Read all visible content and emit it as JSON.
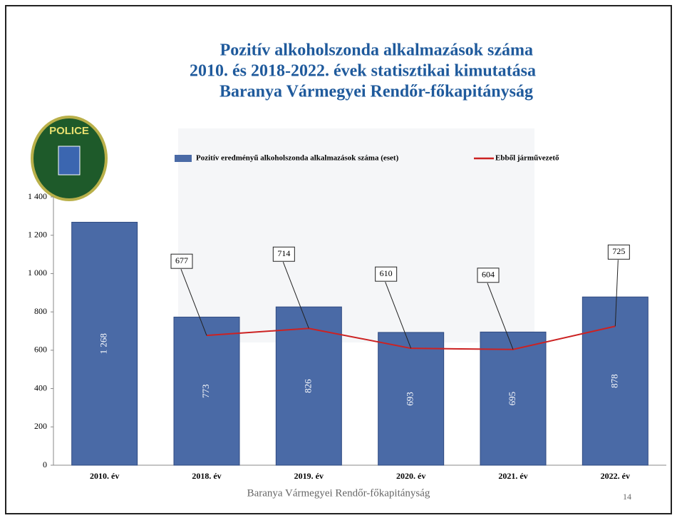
{
  "chart_data": {
    "type": "bar",
    "title": [
      "Pozitív alkoholszonda alkalmazások száma",
      "2010. és 2018-2022. évek statisztikai kimutatása",
      "Baranya Vármegyei Rendőr-főkapitányság"
    ],
    "categories": [
      "2010. év",
      "2018. év",
      "2019. év",
      "2020. év",
      "2021. év",
      "2022. év"
    ],
    "series": [
      {
        "name": "Pozitív eredményű alkoholszonda alkalmazások száma (eset)",
        "type": "bar",
        "color": "#4a6aa6",
        "values": [
          1268,
          773,
          826,
          693,
          695,
          878
        ],
        "value_labels": [
          "1 268",
          "773",
          "826",
          "693",
          "695",
          "878"
        ]
      },
      {
        "name": "Ebből járművezető",
        "type": "line",
        "color": "#cc2222",
        "values": [
          null,
          677,
          714,
          610,
          604,
          725
        ]
      }
    ],
    "ylim": [
      0,
      1400
    ],
    "yticks": [
      0,
      200,
      400,
      600,
      800,
      {
        "value": 1000,
        "label": "1 000"
      },
      {
        "value": 1200,
        "label": "1 200"
      },
      {
        "value": 1400,
        "label": "1 400"
      }
    ],
    "footer": "Baranya Vármegyei Rendőr-főkapitányság",
    "page_number": "14"
  },
  "logo": {
    "text": "POLICE"
  }
}
